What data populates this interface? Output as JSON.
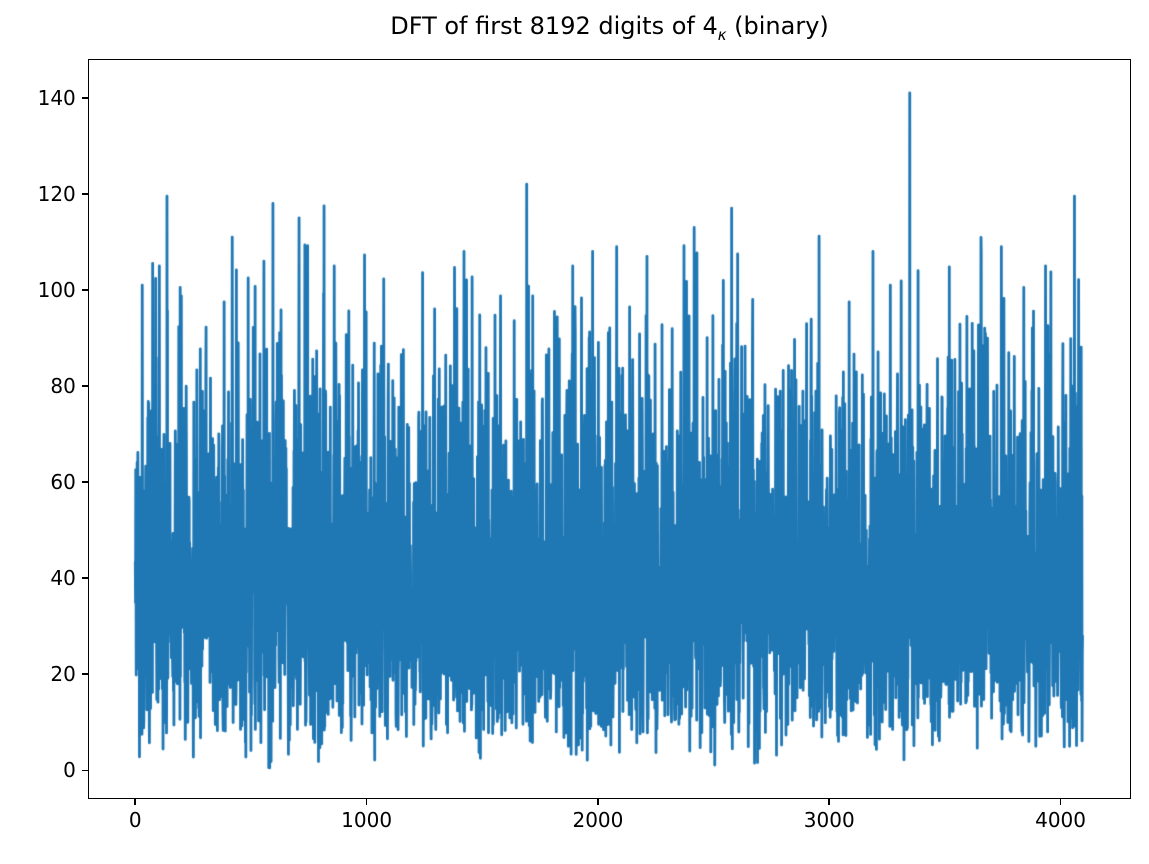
{
  "figure": {
    "background_color": "#ffffff",
    "title": {
      "prefix": "DFT of first 8192 digits of 4",
      "subscript": "κ",
      "suffix": " (binary)"
    }
  },
  "chart_data": {
    "type": "line",
    "title": "DFT of first 8192 digits of 4κ (binary)",
    "xlabel": "",
    "ylabel": "",
    "legend": "none",
    "grid": false,
    "line_color": "#1f77b4",
    "axis_color": "#000000",
    "n_points": 4096,
    "x_start": 0,
    "xlim": [
      -201,
      4301
    ],
    "ylim": [
      -5.8,
      147.9
    ],
    "x_ticks": [
      0,
      1000,
      2000,
      3000,
      4000
    ],
    "x_tick_labels": [
      "0",
      "1000",
      "2000",
      "3000",
      "4000"
    ],
    "y_ticks": [
      0,
      20,
      40,
      60,
      80,
      100,
      120,
      140
    ],
    "y_tick_labels": [
      "0",
      "20",
      "40",
      "60",
      "80",
      "100",
      "120",
      "140"
    ],
    "noise_model": {
      "distribution": "rayleigh",
      "sigma": 32,
      "seed": 42,
      "min": 0.5,
      "max": 112
    },
    "notable_peaks": [
      {
        "x": 30,
        "y": 101
      },
      {
        "x": 104,
        "y": 105
      },
      {
        "x": 137,
        "y": 119.5
      },
      {
        "x": 194,
        "y": 100.5
      },
      {
        "x": 419,
        "y": 111
      },
      {
        "x": 488,
        "y": 102.5
      },
      {
        "x": 595,
        "y": 118
      },
      {
        "x": 708,
        "y": 115
      },
      {
        "x": 816,
        "y": 117.5
      },
      {
        "x": 860,
        "y": 105
      },
      {
        "x": 1421,
        "y": 108
      },
      {
        "x": 1692,
        "y": 122
      },
      {
        "x": 1891,
        "y": 105
      },
      {
        "x": 1977,
        "y": 108
      },
      {
        "x": 2081,
        "y": 109
      },
      {
        "x": 2416,
        "y": 113
      },
      {
        "x": 2578,
        "y": 117
      },
      {
        "x": 3189,
        "y": 108
      },
      {
        "x": 3264,
        "y": 101
      },
      {
        "x": 3348,
        "y": 141
      },
      {
        "x": 3384,
        "y": 104
      },
      {
        "x": 3744,
        "y": 109
      },
      {
        "x": 3841,
        "y": 100.5
      },
      {
        "x": 3935,
        "y": 105
      },
      {
        "x": 4060,
        "y": 119.5
      }
    ]
  }
}
